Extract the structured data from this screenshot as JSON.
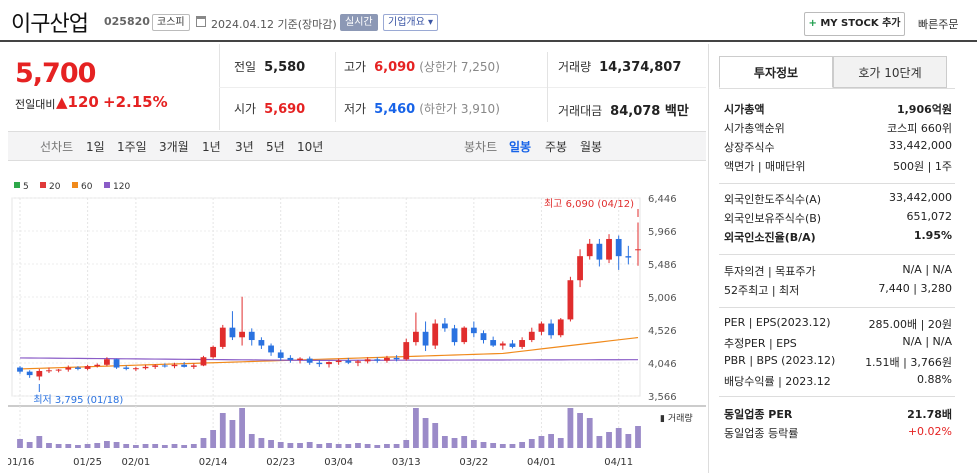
{
  "header": {
    "name": "이구산업",
    "code": "025820",
    "market": "코스피",
    "base_date": "2024.04.12 기준(장마감)",
    "realtime": "실시간",
    "company_info": "기업개요 ▾",
    "mystock": "MY STOCK 추가",
    "mystock_plus": "+",
    "quick_order": "빠른주문"
  },
  "price": {
    "current": "5,700",
    "change_label": "전일대비",
    "change": "▲120",
    "change_pct": "+2.15%"
  },
  "info": {
    "prev_label": "전일",
    "prev": "5,580",
    "high_label": "고가",
    "high": "6,090",
    "upper_limit": "(상한가 7,250)",
    "volume_label": "거래량",
    "volume": "14,374,807",
    "open_label": "시가",
    "open": "5,690",
    "low_label": "저가",
    "low": "5,460",
    "lower_limit": "(하한가 3,910)",
    "amount_label": "거래대금",
    "amount": "84,078 백만"
  },
  "periods": {
    "line_chart": "선차트",
    "items": [
      "1일",
      "1주일",
      "3개월",
      "1년",
      "3년",
      "5년",
      "10년"
    ],
    "candle_chart": "봉차트",
    "candle_items": [
      "일봉",
      "주봉",
      "월봉"
    ],
    "selected": "일봉"
  },
  "right_panel": {
    "tabs": [
      "투자정보",
      "호가 10단계"
    ],
    "rows1": [
      {
        "label": "시가총액",
        "value": "1,906억원",
        "bold": true
      },
      {
        "label": "시가총액순위",
        "value": "코스피 660위"
      },
      {
        "label": "상장주식수",
        "value": "33,442,000"
      },
      {
        "label": "액면가 | 매매단위",
        "value": "500원 | 1주"
      }
    ],
    "rows2": [
      {
        "label": "외국인한도주식수(A)",
        "value": "33,442,000"
      },
      {
        "label": "외국인보유주식수(B)",
        "value": "651,072"
      },
      {
        "label": "외국인소진율(B/A)",
        "value": "1.95%",
        "bold": true
      }
    ],
    "rows3": [
      {
        "label": "투자의견 | 목표주가",
        "value": "N/A | N/A"
      },
      {
        "label": "52주최고 | 최저",
        "value": "7,440 | 3,280"
      }
    ],
    "rows4": [
      {
        "label": "PER | EPS(2023.12)",
        "value": "285.00배 | 20원"
      },
      {
        "label": "추정PER | EPS",
        "value": "N/A | N/A"
      },
      {
        "label": "PBR | BPS (2023.12)",
        "value": "1.51배 | 3,766원"
      },
      {
        "label": "배당수익률 | 2023.12",
        "value": "0.88%"
      }
    ],
    "rows5": [
      {
        "label": "동일업종 PER",
        "value": "21.78배",
        "bold": true
      },
      {
        "label": "동일업종 등락률",
        "value": "+0.02%",
        "red": true
      }
    ]
  },
  "chart_data": {
    "type": "candlestick",
    "legend": [
      {
        "name": "5",
        "color": "#2da84a"
      },
      {
        "name": "20",
        "color": "#e03a3a"
      },
      {
        "name": "60",
        "color": "#f08a1c"
      },
      {
        "name": "120",
        "color": "#8a5cc7"
      }
    ],
    "y_ticks": [
      "6,446",
      "5,966",
      "5,486",
      "5,006",
      "4,526",
      "4,046",
      "3,566"
    ],
    "ylim": [
      3566,
      6446
    ],
    "x_ticks": [
      "01/16",
      "01/25",
      "02/01",
      "02/14",
      "02/23",
      "03/04",
      "03/13",
      "03/22",
      "04/01",
      "04/11"
    ],
    "x_tick_index": [
      0,
      7,
      12,
      20,
      27,
      33,
      40,
      47,
      54,
      62
    ],
    "max_label": "최고 6,090 (04/12)",
    "min_label": "최저 3,795 (01/18)",
    "volume_label": "거래량",
    "candles": [
      [
        3980,
        4000,
        3890,
        3920
      ],
      [
        3920,
        3940,
        3830,
        3870
      ],
      [
        3850,
        3960,
        3795,
        3930
      ],
      [
        3930,
        3980,
        3900,
        3940
      ],
      [
        3940,
        3960,
        3910,
        3950
      ],
      [
        3950,
        4010,
        3920,
        3980
      ],
      [
        3980,
        4000,
        3940,
        3960
      ],
      [
        3960,
        4020,
        3940,
        4000
      ],
      [
        4000,
        4040,
        3980,
        4020
      ],
      [
        4020,
        4130,
        4000,
        4100
      ],
      [
        4100,
        4110,
        3960,
        3980
      ],
      [
        3980,
        4010,
        3940,
        3960
      ],
      [
        3960,
        3990,
        3930,
        3970
      ],
      [
        3970,
        4020,
        3950,
        3990
      ],
      [
        3990,
        4030,
        3960,
        4010
      ],
      [
        4010,
        4040,
        3980,
        4000
      ],
      [
        4000,
        4050,
        3970,
        4020
      ],
      [
        4020,
        4060,
        3980,
        3990
      ],
      [
        3990,
        4040,
        3960,
        4010
      ],
      [
        4010,
        4150,
        4000,
        4130
      ],
      [
        4130,
        4300,
        4110,
        4280
      ],
      [
        4280,
        4600,
        4250,
        4560
      ],
      [
        4560,
        4800,
        4380,
        4420
      ],
      [
        4420,
        5010,
        4300,
        4500
      ],
      [
        4500,
        4550,
        4300,
        4380
      ],
      [
        4380,
        4420,
        4250,
        4300
      ],
      [
        4300,
        4330,
        4150,
        4200
      ],
      [
        4200,
        4240,
        4080,
        4120
      ],
      [
        4120,
        4160,
        4050,
        4090
      ],
      [
        4090,
        4130,
        4040,
        4110
      ],
      [
        4110,
        4140,
        4020,
        4050
      ],
      [
        4050,
        4090,
        3990,
        4030
      ],
      [
        4030,
        4070,
        3980,
        4060
      ],
      [
        4060,
        4110,
        4020,
        4080
      ],
      [
        4080,
        4120,
        4030,
        4050
      ],
      [
        4050,
        4090,
        4000,
        4070
      ],
      [
        4070,
        4130,
        4040,
        4100
      ],
      [
        4100,
        4130,
        4050,
        4080
      ],
      [
        4080,
        4150,
        4050,
        4120
      ],
      [
        4120,
        4160,
        4070,
        4100
      ],
      [
        4100,
        4400,
        4080,
        4350
      ],
      [
        4350,
        4780,
        4300,
        4500
      ],
      [
        4500,
        4650,
        4220,
        4300
      ],
      [
        4300,
        4680,
        4250,
        4620
      ],
      [
        4620,
        4700,
        4500,
        4550
      ],
      [
        4550,
        4600,
        4300,
        4350
      ],
      [
        4350,
        4580,
        4320,
        4560
      ],
      [
        4560,
        4650,
        4420,
        4480
      ],
      [
        4480,
        4520,
        4330,
        4380
      ],
      [
        4380,
        4430,
        4280,
        4300
      ],
      [
        4300,
        4360,
        4240,
        4330
      ],
      [
        4330,
        4380,
        4260,
        4280
      ],
      [
        4280,
        4420,
        4250,
        4380
      ],
      [
        4380,
        4560,
        4350,
        4500
      ],
      [
        4500,
        4650,
        4450,
        4620
      ],
      [
        4620,
        4680,
        4400,
        4450
      ],
      [
        4450,
        4700,
        4420,
        4680
      ],
      [
        4680,
        5300,
        4650,
        5250
      ],
      [
        5250,
        5700,
        5150,
        5600
      ],
      [
        5600,
        5850,
        5550,
        5780
      ],
      [
        5780,
        5850,
        5450,
        5550
      ],
      [
        5550,
        5920,
        5500,
        5850
      ],
      [
        5850,
        5900,
        5400,
        5600
      ],
      [
        5600,
        5750,
        5480,
        5580
      ],
      [
        5690,
        6090,
        5460,
        5700
      ]
    ],
    "volumes": [
      9,
      6,
      12,
      5,
      4,
      4,
      3,
      4,
      5,
      7,
      6,
      4,
      3,
      4,
      4,
      3,
      4,
      3,
      4,
      10,
      18,
      35,
      28,
      40,
      14,
      10,
      8,
      6,
      5,
      5,
      6,
      4,
      5,
      4,
      4,
      5,
      4,
      3,
      4,
      4,
      8,
      40,
      30,
      25,
      12,
      10,
      12,
      8,
      6,
      5,
      4,
      4,
      6,
      9,
      12,
      14,
      10,
      40,
      35,
      30,
      12,
      16,
      20,
      14,
      22
    ]
  }
}
